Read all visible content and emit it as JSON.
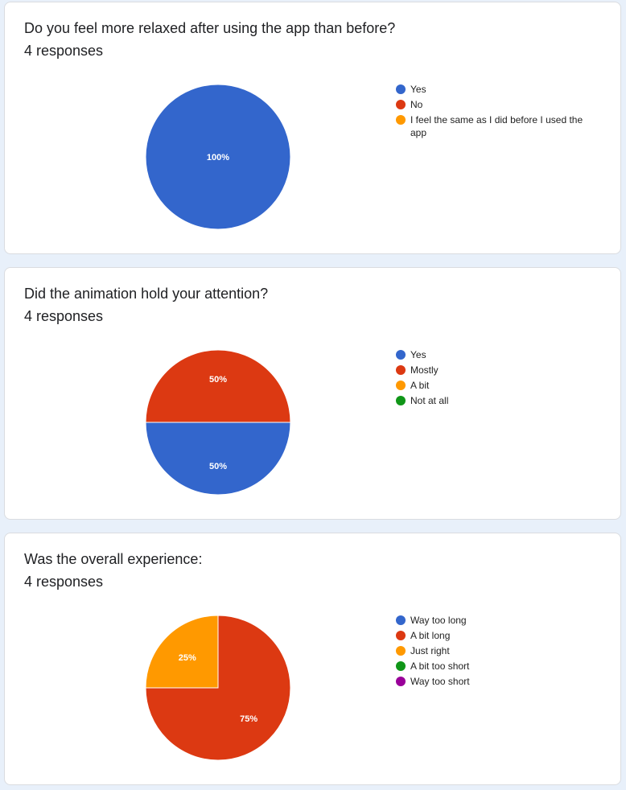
{
  "cards": [
    {
      "title": "Do you feel more relaxed after using the app than before?",
      "responses": "4 responses",
      "chart_data": {
        "type": "pie",
        "categories": [
          "Yes",
          "No",
          "I feel the same as I did before I used the app"
        ],
        "values": [
          100,
          0,
          0
        ],
        "colors": [
          "#3366cc",
          "#dc3912",
          "#ff9900"
        ],
        "labels": [
          "100%",
          "",
          ""
        ]
      }
    },
    {
      "title": "Did the animation hold your attention?",
      "responses": "4 responses",
      "chart_data": {
        "type": "pie",
        "categories": [
          "Yes",
          "Mostly",
          "A bit",
          "Not at all"
        ],
        "values": [
          50,
          50,
          0,
          0
        ],
        "colors": [
          "#3366cc",
          "#dc3912",
          "#ff9900",
          "#109618"
        ],
        "labels": [
          "50%",
          "50%",
          "",
          ""
        ]
      }
    },
    {
      "title": "Was the overall experience:",
      "responses": "4 responses",
      "chart_data": {
        "type": "pie",
        "categories": [
          "Way too long",
          "A bit long",
          "Just right",
          "A bit too short",
          "Way too short"
        ],
        "values": [
          0,
          75,
          25,
          0,
          0
        ],
        "colors": [
          "#3366cc",
          "#dc3912",
          "#ff9900",
          "#109618",
          "#990099"
        ],
        "labels": [
          "",
          "75%",
          "25%",
          "",
          ""
        ]
      }
    }
  ]
}
